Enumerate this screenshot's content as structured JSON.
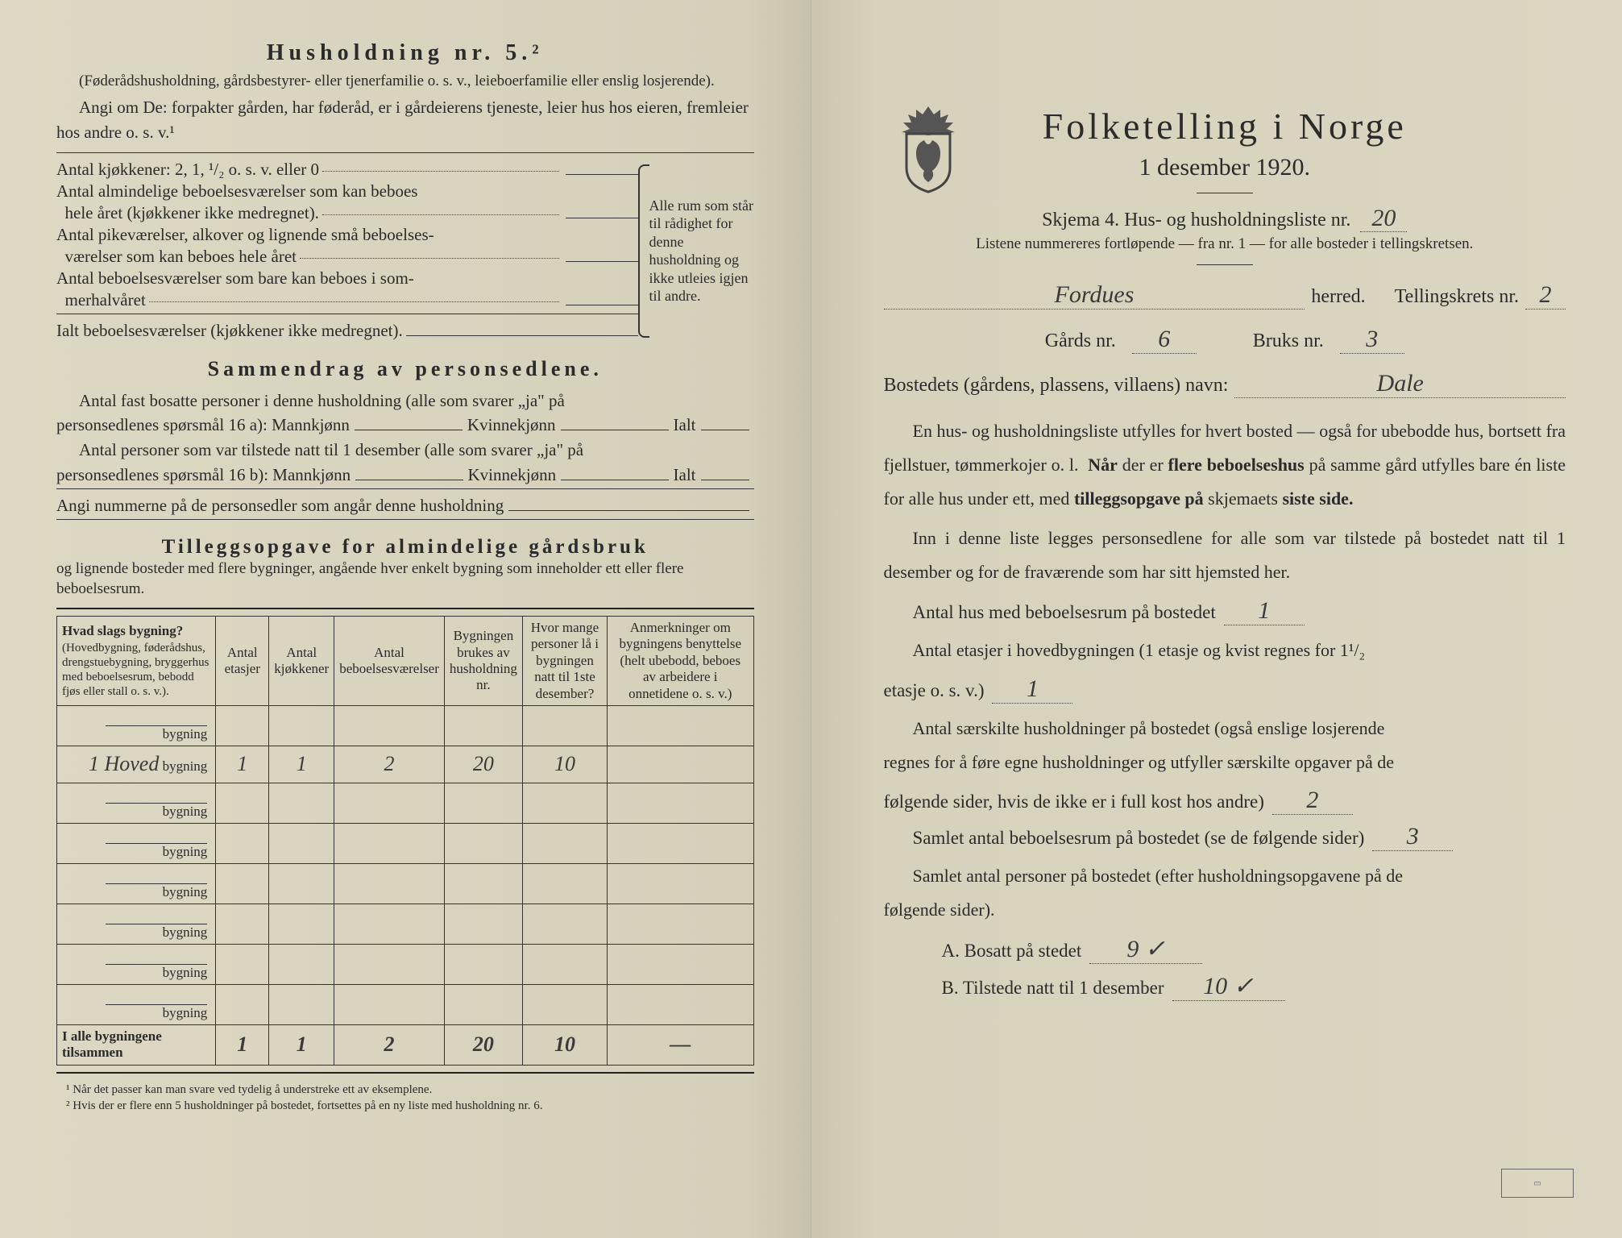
{
  "left": {
    "title": "Husholdning nr. 5.²",
    "federad_note": "(Føderådshusholdning, gårdsbestyrer- eller tjenerfamilie o. s. v., leieboerfamilie eller enslig losjerende).",
    "angi_note": "Angi om De: forpakter gården, har føderåd, er i gårdeierens tjeneste, leier hus hos eieren, fremleier hos andre o. s. v.¹",
    "rooms": {
      "kjokkener": "Antal kjøkkener: 2, 1, ¹/₂ o. s. v. eller 0",
      "almindelige1": "Antal almindelige beboelsesværelser som kan beboes",
      "almindelige2": "  hele året (kjøkkener ikke medregnet).",
      "pike1": "Antal pikeværelser, alkover og lignende små beboelses-",
      "pike2": "  værelser som kan beboes hele året",
      "sommer1": "Antal beboelsesværelser som bare kan beboes i som-",
      "sommer2": "  merhalvåret",
      "ialt": "Ialt beboelsesværelser (kjøkkener ikke medregnet).",
      "brace_text": "Alle rum som står til rådighet for denne husholdning og ikke utleies igjen til andre."
    },
    "sammendrag": {
      "title": "Sammendrag av personsedlene.",
      "line1a": "Antal fast bosatte personer i denne husholdning (alle som svarer „ja\" på",
      "line1b": "personsedlenes spørsmål 16 a): Mannkjønn",
      "kv": "Kvinnekjønn",
      "ialt": "Ialt",
      "line2a": "Antal personer som var tilstede natt til 1 desember (alle som svarer „ja\" på",
      "line2b": "personsedlenes spørsmål 16 b): Mannkjønn",
      "line3": "Angi nummerne på de personsedler som angår denne husholdning"
    },
    "tillegg": {
      "title": "Tilleggsopgave for almindelige gårdsbruk",
      "sub": "og lignende bosteder med flere bygninger, angående hver enkelt bygning som inneholder ett eller flere beboelsesrum."
    },
    "table": {
      "headers": {
        "c0a": "Hvad slags bygning?",
        "c0b": "(Hovedbygning, føderådshus, drengstuebygning, bryggerhus med beboelsesrum, bebodd fjøs eller stall o. s. v.).",
        "c1": "Antal etasjer",
        "c2": "Antal kjøkkener",
        "c3": "Antal beboelsesværelser",
        "c4": "Bygningen brukes av husholdning nr.",
        "c5": "Hvor mange personer lå i bygningen natt til 1ste desember?",
        "c6": "Anmerkninger om bygningens benyttelse (helt ubebodd, beboes av arbeidere i onnetidene o. s. v.)"
      },
      "row_label": "bygning",
      "rows": [
        {
          "name": "",
          "c1": "",
          "c2": "",
          "c3": "",
          "c4": "",
          "c5": "",
          "c6": ""
        },
        {
          "name": "1 Hoved",
          "c1": "1",
          "c2": "1",
          "c3": "2",
          "c4": "20",
          "c5": "10",
          "c6": ""
        },
        {
          "name": "",
          "c1": "",
          "c2": "",
          "c3": "",
          "c4": "",
          "c5": "",
          "c6": ""
        },
        {
          "name": "",
          "c1": "",
          "c2": "",
          "c3": "",
          "c4": "",
          "c5": "",
          "c6": ""
        },
        {
          "name": "",
          "c1": "",
          "c2": "",
          "c3": "",
          "c4": "",
          "c5": "",
          "c6": ""
        },
        {
          "name": "",
          "c1": "",
          "c2": "",
          "c3": "",
          "c4": "",
          "c5": "",
          "c6": ""
        },
        {
          "name": "",
          "c1": "",
          "c2": "",
          "c3": "",
          "c4": "",
          "c5": "",
          "c6": ""
        },
        {
          "name": "",
          "c1": "",
          "c2": "",
          "c3": "",
          "c4": "",
          "c5": "",
          "c6": ""
        }
      ],
      "footer_label": "I alle bygningene tilsammen",
      "footer": {
        "c1": "1",
        "c2": "1",
        "c3": "2",
        "c4": "20",
        "c5": "10",
        "c6": "—"
      }
    },
    "footnotes": {
      "f1": "¹  Når det passer kan man svare ved tydelig å understreke ett av eksemplene.",
      "f2": "²  Hvis der er flere enn 5 husholdninger på bostedet, fortsettes på en ny liste med husholdning nr. 6."
    }
  },
  "right": {
    "title": "Folketelling i Norge",
    "date": "1 desember 1920.",
    "skjema_label": "Skjema 4.  Hus- og husholdningsliste nr.",
    "skjema_nr": "20",
    "skjema_sub": "Listene nummereres fortløpende — fra nr. 1 — for alle bosteder i tellingskretsen.",
    "herred_value": "Fordues",
    "herred_label": "herred.",
    "tkrets_label": "Tellingskrets nr.",
    "tkrets_value": "2",
    "gards_label": "Gårds nr.",
    "gards_value": "6",
    "bruks_label": "Bruks nr.",
    "bruks_value": "3",
    "bosted_label": "Bostedets (gårdens, plassens, villaens) navn:",
    "bosted_value": "Dale",
    "para1": "En hus- og husholdningsliste utfylles for hvert bosted — også for ubebodde hus, bortsett fra fjellstuer, tømmerkojer o. l.  Når der er flere beboelseshus på samme gård utfylles bare én liste for alle hus under ett, med tilleggsopgave på skjemaets siste side.",
    "para2": "Inn i denne liste legges personsedlene for alle som var tilstede på bostedet natt til 1 desember og for de fraværende som har sitt hjemsted her.",
    "q_hus": "Antal hus med beboelsesrum på bostedet",
    "a_hus": "1",
    "q_etasjer1": "Antal etasjer i hovedbygningen (1 etasje og kvist regnes for 1¹/₂",
    "q_etasjer2": "etasje o. s. v.)",
    "a_etasjer": "1",
    "q_hush1": "Antal særskilte husholdninger på bostedet (også enslige losjerende",
    "q_hush2": "regnes for å føre egne husholdninger og utfyller særskilte opgaver på de",
    "q_hush3": "følgende sider, hvis de ikke er i full kost hos andre)",
    "a_hush": "2",
    "q_rum": "Samlet antal beboelsesrum på bostedet (se de følgende sider)",
    "a_rum": "3",
    "q_pers": "Samlet antal personer på bostedet (efter husholdningsopgavene på de",
    "q_pers2": "følgende sider).",
    "qA": "A.  Bosatt på stedet",
    "aA": "9 ✓",
    "qB": "B.  Tilstede natt til 1 desember",
    "aB": "10 ✓"
  },
  "colors": {
    "paper": "#d8d4bf",
    "ink": "#2b2b2b",
    "hand": "#3a3a3a"
  }
}
